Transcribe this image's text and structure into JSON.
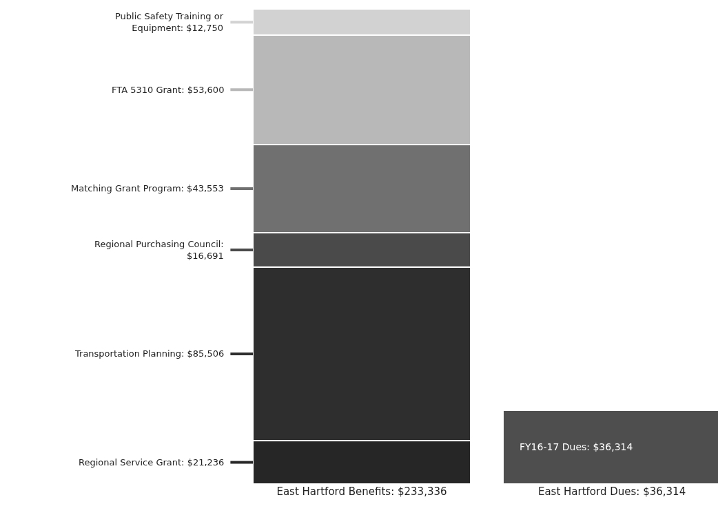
{
  "chart_data": {
    "type": "bar",
    "stacked": true,
    "legend": false,
    "categories": [
      "East Hartford Benefits: $233,336",
      "East Hartford Dues: $36,314"
    ],
    "series": [
      {
        "color": "#262626",
        "values": [
          21236,
          null
        ],
        "value_labels": [
          "Regional Service Grant: $21,236",
          null
        ]
      },
      {
        "color": "#2e2e2e",
        "values": [
          85506,
          null
        ],
        "value_labels": [
          "Transportation Planning: $85,506",
          null
        ]
      },
      {
        "color": "#4a4a4a",
        "values": [
          16691,
          null
        ],
        "value_labels": [
          "Regional Purchasing Council: $16,691",
          null
        ]
      },
      {
        "color": "#707070",
        "values": [
          43553,
          null
        ],
        "value_labels": [
          "Matching Grant Program: $43,553",
          null
        ]
      },
      {
        "color": "#b8b8b8",
        "values": [
          53600,
          null
        ],
        "value_labels": [
          "FTA 5310 Grant: $53,600",
          null
        ]
      },
      {
        "color": "#d2d2d2",
        "values": [
          12750,
          null
        ],
        "value_labels": [
          "Public Safety Training or Equipment: $12,750",
          null
        ]
      },
      {
        "color": "#4e4e4e",
        "values": [
          null,
          36314
        ],
        "value_labels": [
          null,
          "FY16-17 Dues: $36,314"
        ]
      }
    ]
  }
}
